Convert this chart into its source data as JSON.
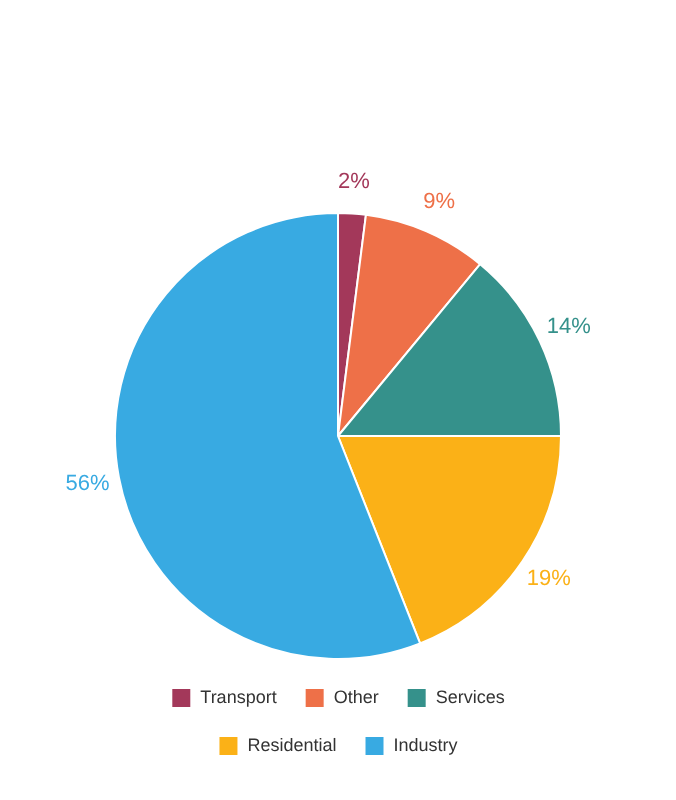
{
  "chart_data": {
    "type": "pie",
    "categories": [
      "Transport",
      "Other",
      "Services",
      "Residential",
      "Industry"
    ],
    "values": [
      2,
      9,
      14,
      19,
      56
    ],
    "colors": [
      "#a3385a",
      "#ee7048",
      "#35918b",
      "#fbb117",
      "#38aae2"
    ],
    "value_labels": [
      "2%",
      "9%",
      "14%",
      "19%",
      "56%"
    ],
    "legend": "bottom"
  }
}
